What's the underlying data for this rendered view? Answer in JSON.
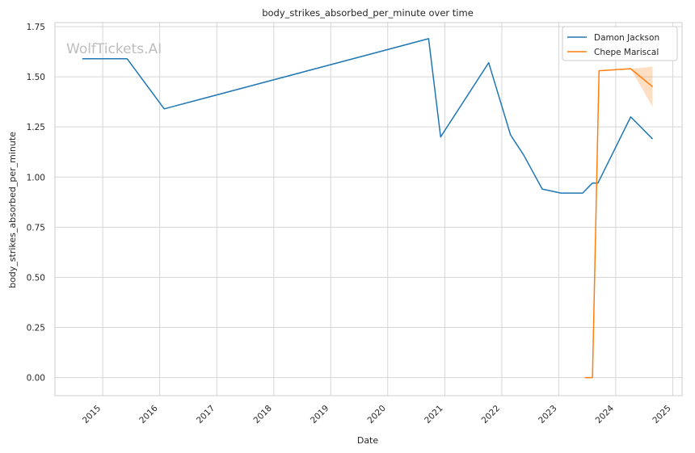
{
  "chart_data": {
    "type": "line",
    "title": "body_strikes_absorbed_per_minute over time",
    "xlabel": "Date",
    "ylabel": "body_strikes_absorbed_per_minute",
    "watermark": "WolfTickets.AI",
    "xlim": [
      "2014-03-01",
      "2025-03-01"
    ],
    "ylim": [
      -0.09,
      1.77
    ],
    "x_ticks": [
      "2015",
      "2016",
      "2017",
      "2018",
      "2019",
      "2020",
      "2021",
      "2022",
      "2023",
      "2024",
      "2025"
    ],
    "y_ticks": [
      0.0,
      0.25,
      0.5,
      0.75,
      1.0,
      1.25,
      1.5,
      1.75
    ],
    "y_tick_labels": [
      "0.00",
      "0.25",
      "0.50",
      "0.75",
      "1.00",
      "1.25",
      "1.50",
      "1.75"
    ],
    "grid": true,
    "legend_position": "top-right",
    "series": [
      {
        "name": "Damon Jackson",
        "color": "#1f77b4",
        "points": [
          [
            "2014-08-23",
            1.59
          ],
          [
            "2015-06-06",
            1.59
          ],
          [
            "2016-01-30",
            1.34
          ],
          [
            "2020-09-19",
            1.69
          ],
          [
            "2020-12-05",
            1.2
          ],
          [
            "2021-10-09",
            1.57
          ],
          [
            "2022-02-26",
            1.21
          ],
          [
            "2022-05-21",
            1.11
          ],
          [
            "2022-09-17",
            0.94
          ],
          [
            "2023-01-14",
            0.92
          ],
          [
            "2023-06-03",
            0.92
          ],
          [
            "2023-08-05",
            0.97
          ],
          [
            "2023-09-09",
            0.97
          ],
          [
            "2024-04-06",
            1.3
          ],
          [
            "2024-08-24",
            1.19
          ]
        ]
      },
      {
        "name": "Chepe Mariscal",
        "color": "#ff7f0e",
        "points": [
          [
            "2023-06-17",
            0.0
          ],
          [
            "2023-08-05",
            0.0
          ],
          [
            "2023-09-16",
            1.53
          ],
          [
            "2024-04-06",
            1.54
          ],
          [
            "2024-08-24",
            1.45
          ]
        ],
        "band": [
          [
            "2024-04-06",
            1.54,
            1.54
          ],
          [
            "2024-08-24",
            1.35,
            1.55
          ]
        ]
      }
    ]
  }
}
